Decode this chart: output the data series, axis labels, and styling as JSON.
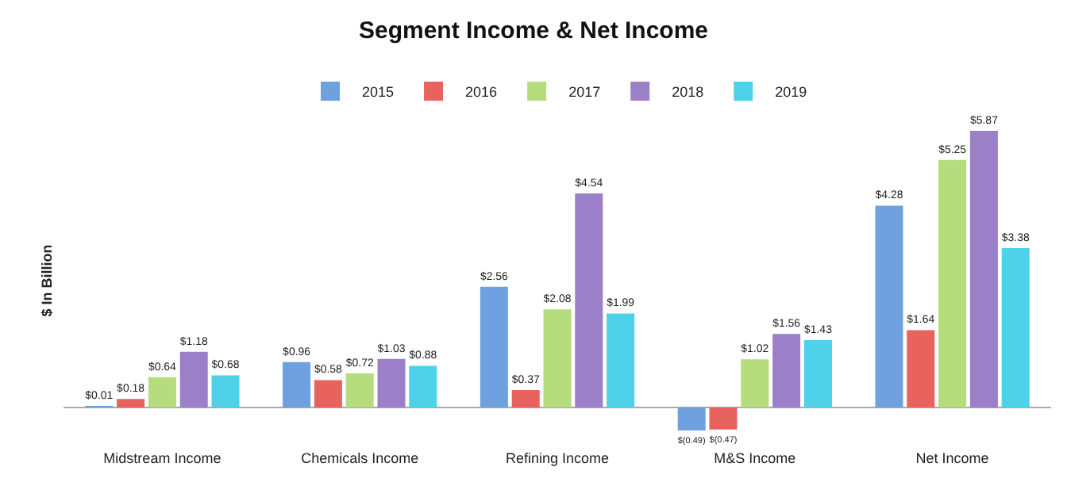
{
  "chart_data": {
    "type": "bar",
    "title": "Segment Income & Net Income",
    "ylabel": "$ In Billion",
    "categories": [
      "Midstream Income",
      "Chemicals Income",
      "Refining Income",
      "M&S Income",
      "Net Income"
    ],
    "series": [
      {
        "name": "2015",
        "color": "#6fa0e0",
        "values": [
          0.01,
          0.96,
          2.56,
          -0.49,
          4.28
        ],
        "value_labels": [
          "$0.01",
          "$0.96",
          "$2.56",
          "$(0.49)",
          "$4.28"
        ]
      },
      {
        "name": "2016",
        "color": "#e8625e",
        "values": [
          0.18,
          0.58,
          0.37,
          -0.47,
          1.64
        ],
        "value_labels": [
          "$0.18",
          "$0.58",
          "$0.37",
          "$(0.47)",
          "$1.64"
        ]
      },
      {
        "name": "2017",
        "color": "#b5dd7e",
        "values": [
          0.64,
          0.72,
          2.08,
          1.02,
          5.25
        ],
        "value_labels": [
          "$0.64",
          "$0.72",
          "$2.08",
          "$1.02",
          "$5.25"
        ]
      },
      {
        "name": "2018",
        "color": "#9b7fc8",
        "values": [
          1.18,
          1.03,
          4.54,
          1.56,
          5.87
        ],
        "value_labels": [
          "$1.18",
          "$1.03",
          "$4.54",
          "$1.56",
          "$5.87"
        ]
      },
      {
        "name": "2019",
        "color": "#4dd2ea",
        "values": [
          0.68,
          0.88,
          1.99,
          1.43,
          3.38
        ],
        "value_labels": [
          "$0.68",
          "$0.88",
          "$1.99",
          "$1.43",
          "$3.38"
        ]
      }
    ],
    "tick_labels": "x",
    "grid": false,
    "legend": "top"
  }
}
